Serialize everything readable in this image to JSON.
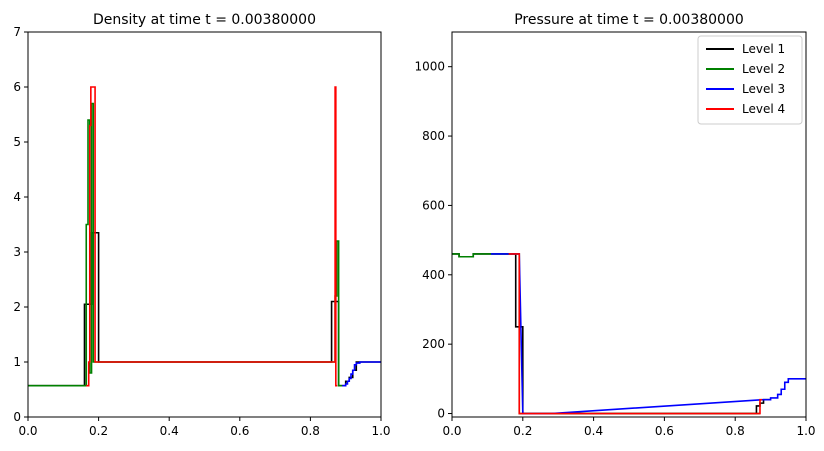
{
  "chart_data": [
    {
      "type": "line",
      "title": "Density at time t =     0.00380000",
      "xlim": [
        0,
        1
      ],
      "ylim": [
        0,
        7
      ],
      "xticks": [
        "0.0",
        "0.2",
        "0.4",
        "0.6",
        "0.8",
        "1.0"
      ],
      "yticks": [
        "0",
        "1",
        "2",
        "3",
        "4",
        "5",
        "6",
        "7"
      ],
      "grid": false,
      "series": [
        {
          "name": "Level 1",
          "color": "#000000",
          "drawstyle": "steps",
          "x": [
            0.0,
            0.16,
            0.16,
            0.18,
            0.18,
            0.2,
            0.2,
            0.28,
            0.28,
            0.76,
            0.76,
            0.86,
            0.86,
            0.88,
            0.88,
            0.9,
            0.9,
            0.91,
            0.91,
            0.92,
            0.92,
            0.93,
            0.93,
            1.0
          ],
          "y": [
            0.57,
            0.57,
            2.05,
            2.05,
            3.35,
            3.35,
            1.0,
            1.0,
            1.0,
            1.0,
            1.0,
            1.0,
            2.1,
            2.1,
            0.57,
            0.57,
            0.65,
            0.65,
            0.72,
            0.72,
            0.85,
            0.85,
            1.0,
            1.0
          ]
        },
        {
          "name": "Level 2",
          "color": "#008000",
          "drawstyle": "steps",
          "x": [
            0.0,
            0.12,
            0.12,
            0.165,
            0.165,
            0.17,
            0.17,
            0.175,
            0.175,
            0.18,
            0.18,
            0.185,
            0.185,
            0.19,
            0.19,
            0.28,
            0.28,
            0.76,
            0.76,
            0.82,
            0.82,
            0.87,
            0.87,
            0.875,
            0.875,
            0.88,
            0.88,
            0.89
          ],
          "y": [
            0.57,
            0.57,
            0.57,
            0.57,
            3.5,
            3.5,
            5.4,
            5.4,
            0.8,
            0.8,
            5.7,
            5.7,
            1.0,
            1.0,
            1.0,
            1.0,
            1.0,
            1.0,
            1.0,
            1.0,
            1.0,
            1.0,
            2.2,
            2.2,
            3.2,
            3.2,
            0.57,
            0.57
          ]
        },
        {
          "name": "Level 3",
          "color": "#0000ff",
          "drawstyle": "steps",
          "x": [
            0.89,
            0.9,
            0.9,
            0.905,
            0.905,
            0.91,
            0.91,
            0.915,
            0.915,
            0.92,
            0.92,
            0.925,
            0.925,
            0.93,
            0.93,
            0.94,
            0.94,
            0.96,
            0.96,
            1.0
          ],
          "y": [
            0.57,
            0.57,
            0.6,
            0.6,
            0.65,
            0.65,
            0.7,
            0.7,
            0.78,
            0.78,
            0.85,
            0.85,
            0.95,
            0.95,
            0.98,
            0.98,
            1.0,
            1.0,
            1.0,
            1.0
          ]
        },
        {
          "name": "Level 4",
          "color": "#ff0000",
          "drawstyle": "steps",
          "x": [
            0.165,
            0.172,
            0.172,
            0.175,
            0.175,
            0.178,
            0.178,
            0.19,
            0.19,
            0.195,
            0.865,
            0.87,
            0.87,
            0.872,
            0.872,
            0.876
          ],
          "y": [
            0.57,
            0.57,
            1.0,
            1.0,
            5.3,
            5.3,
            6.0,
            6.0,
            1.0,
            1.0,
            1.0,
            1.0,
            6.0,
            6.0,
            0.57,
            0.57
          ]
        }
      ]
    },
    {
      "type": "line",
      "title": "Pressure at time t =     0.00380000",
      "xlim": [
        0,
        1
      ],
      "ylim": [
        -10,
        1100
      ],
      "xticks": [
        "0.0",
        "0.2",
        "0.4",
        "0.6",
        "0.8",
        "1.0"
      ],
      "yticks": [
        "0",
        "200",
        "400",
        "600",
        "800",
        "1000"
      ],
      "grid": false,
      "legend_position": "top-right",
      "series": [
        {
          "name": "Level 1",
          "color": "#000000",
          "drawstyle": "steps",
          "x": [
            0.0,
            0.02,
            0.02,
            0.06,
            0.06,
            0.18,
            0.18,
            0.19,
            0.19,
            0.2,
            0.2,
            0.86,
            0.86,
            0.87,
            0.87,
            0.88,
            0.88,
            0.9
          ],
          "y": [
            460,
            460,
            452,
            452,
            460,
            460,
            250,
            250,
            250,
            250,
            0,
            0,
            22,
            22,
            30,
            30,
            40,
            40
          ]
        },
        {
          "name": "Level 2",
          "color": "#008000",
          "drawstyle": "steps",
          "x": [
            0.0,
            0.02,
            0.02,
            0.06,
            0.06,
            0.11,
            0.11,
            0.19,
            0.19,
            0.24,
            0.24,
            0.28,
            0.28,
            0.76,
            0.76,
            0.85,
            0.85,
            0.87
          ],
          "y": [
            460,
            460,
            452,
            452,
            460,
            460,
            460,
            460,
            0,
            0,
            0,
            0,
            0,
            0,
            0,
            0,
            0,
            0
          ]
        },
        {
          "name": "Level 3",
          "color": "#0000ff",
          "drawstyle": "steps",
          "x": [
            0.11,
            0.16,
            0.16,
            0.19,
            0.2,
            0.24,
            0.24,
            0.28,
            0.88,
            0.9,
            0.9,
            0.92,
            0.92,
            0.93,
            0.93,
            0.94,
            0.94,
            0.95,
            0.95,
            1.0
          ],
          "y": [
            460,
            460,
            460,
            460,
            0,
            0,
            0,
            0,
            40,
            40,
            45,
            45,
            55,
            55,
            70,
            70,
            90,
            90,
            100,
            100
          ]
        },
        {
          "name": "Level 4",
          "color": "#ff0000",
          "drawstyle": "steps",
          "x": [
            0.16,
            0.185,
            0.185,
            0.19,
            0.19,
            0.2,
            0.86,
            0.87,
            0.87,
            0.876
          ],
          "y": [
            460,
            460,
            460,
            460,
            0,
            0,
            0,
            0,
            40,
            40
          ]
        }
      ]
    }
  ]
}
